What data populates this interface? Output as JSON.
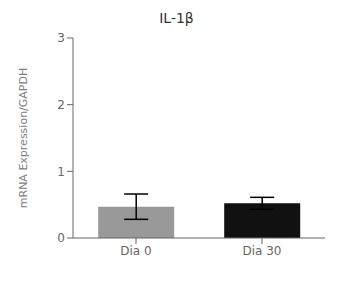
{
  "chart_data": {
    "type": "bar",
    "title": "IL-1β",
    "categories": [
      "Dia 0",
      "Dia 30"
    ],
    "values": [
      0.47,
      0.52
    ],
    "error_bars": [
      0.19,
      0.09
    ],
    "colors": [
      "#999999",
      "#111111"
    ],
    "ylabel": "mRNA Expression/GAPDH",
    "ylim": [
      0,
      3
    ],
    "yticks": [
      0,
      1,
      2,
      3
    ],
    "grid": false
  }
}
